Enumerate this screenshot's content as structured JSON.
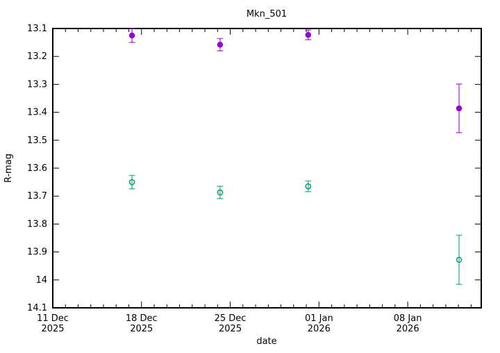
{
  "page": {
    "background": "#ffffff"
  },
  "chart_data": {
    "type": "scatter",
    "title": "Mkn_501",
    "xlabel": "date",
    "ylabel": "R-mag",
    "legend": "none",
    "grid": false,
    "x_axis": {
      "unit": "days since 11 Dec 2025",
      "range": [
        0,
        33.8
      ],
      "minor_interval": 1,
      "major_ticks": [
        {
          "day": 0,
          "line1": "11 Dec",
          "line2": "2025"
        },
        {
          "day": 7,
          "line1": "18 Dec",
          "line2": "2025"
        },
        {
          "day": 14,
          "line1": "25 Dec",
          "line2": "2025"
        },
        {
          "day": 21,
          "line1": "01 Jan",
          "line2": "2026"
        },
        {
          "day": 28,
          "line1": "08 Jan",
          "line2": "2026"
        }
      ]
    },
    "y_axis": {
      "range": [
        13.1,
        14.1
      ],
      "inverted": true,
      "ticks": [
        {
          "value": 13.1,
          "label": "13.1"
        },
        {
          "value": 13.2,
          "label": "13.2"
        },
        {
          "value": 13.3,
          "label": "13.3"
        },
        {
          "value": 13.4,
          "label": "13.4"
        },
        {
          "value": 13.5,
          "label": "13.5"
        },
        {
          "value": 13.6,
          "label": "13.6"
        },
        {
          "value": 13.7,
          "label": "13.7"
        },
        {
          "value": 13.8,
          "label": "13.8"
        },
        {
          "value": 13.9,
          "label": "13.9"
        },
        {
          "value": 14.0,
          "label": "14"
        },
        {
          "value": 14.1,
          "label": "14.1"
        }
      ]
    },
    "series": [
      {
        "name": "series-1-bright",
        "marker": "filled-circle",
        "color": "#9400d3",
        "points": [
          {
            "day": 6.25,
            "mag": 13.125,
            "err": 0.025
          },
          {
            "day": 13.2,
            "mag": 13.158,
            "err": 0.022
          },
          {
            "day": 20.15,
            "mag": 13.123,
            "err": 0.017
          },
          {
            "day": 32.05,
            "mag": 13.386,
            "err": 0.087
          }
        ]
      },
      {
        "name": "series-2-faint",
        "marker": "open-circle",
        "color": "#009e73",
        "points": [
          {
            "day": 6.25,
            "mag": 13.65,
            "err": 0.024
          },
          {
            "day": 13.2,
            "mag": 13.687,
            "err": 0.022
          },
          {
            "day": 20.15,
            "mag": 13.665,
            "err": 0.019
          },
          {
            "day": 32.05,
            "mag": 13.928,
            "err": 0.088
          }
        ]
      }
    ]
  }
}
